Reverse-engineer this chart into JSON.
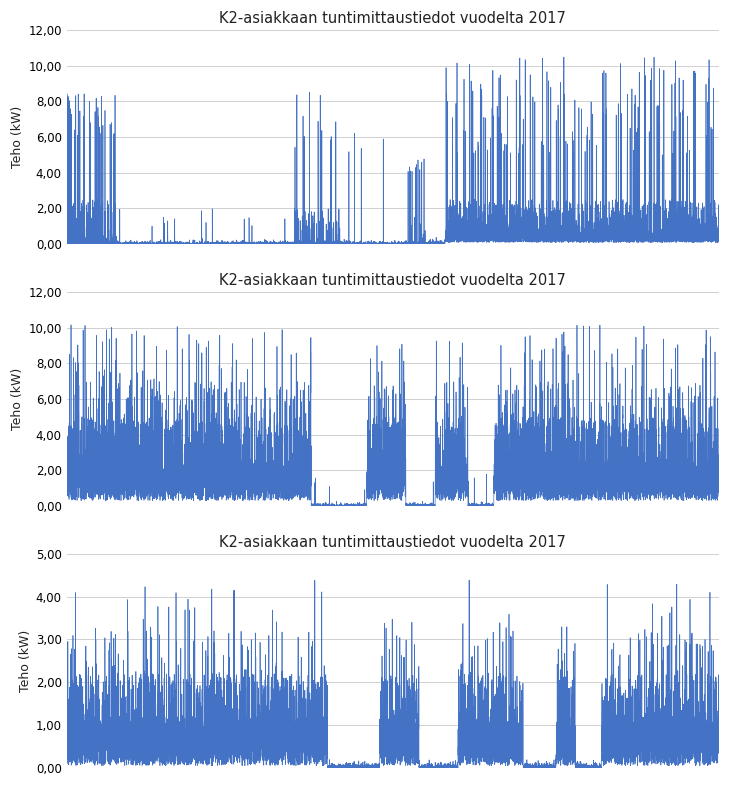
{
  "title": "K2-asiakkaan tuntimittaustiedot vuodelta 2017",
  "ylabel": "Teho (kW)",
  "n_points": 8760,
  "line_color": "#4472C4",
  "line_width": 0.5,
  "background_color": "#ffffff",
  "grid_color": "#d0d0d0",
  "charts": [
    {
      "ylim": [
        0,
        12
      ],
      "yticks": [
        0.0,
        2.0,
        4.0,
        6.0,
        8.0,
        10.0,
        12.0
      ],
      "ytick_labels": [
        "0,00",
        "2,00",
        "4,00",
        "6,00",
        "8,00",
        "10,00",
        "12,00"
      ]
    },
    {
      "ylim": [
        0,
        12
      ],
      "yticks": [
        0.0,
        2.0,
        4.0,
        6.0,
        8.0,
        10.0,
        12.0
      ],
      "ytick_labels": [
        "0,00",
        "2,00",
        "4,00",
        "6,00",
        "8,00",
        "10,00",
        "12,00"
      ]
    },
    {
      "ylim": [
        0,
        5
      ],
      "yticks": [
        0.0,
        1.0,
        2.0,
        3.0,
        4.0,
        5.0
      ],
      "ytick_labels": [
        "0,00",
        "1,00",
        "2,00",
        "3,00",
        "4,00",
        "5,00"
      ]
    }
  ]
}
